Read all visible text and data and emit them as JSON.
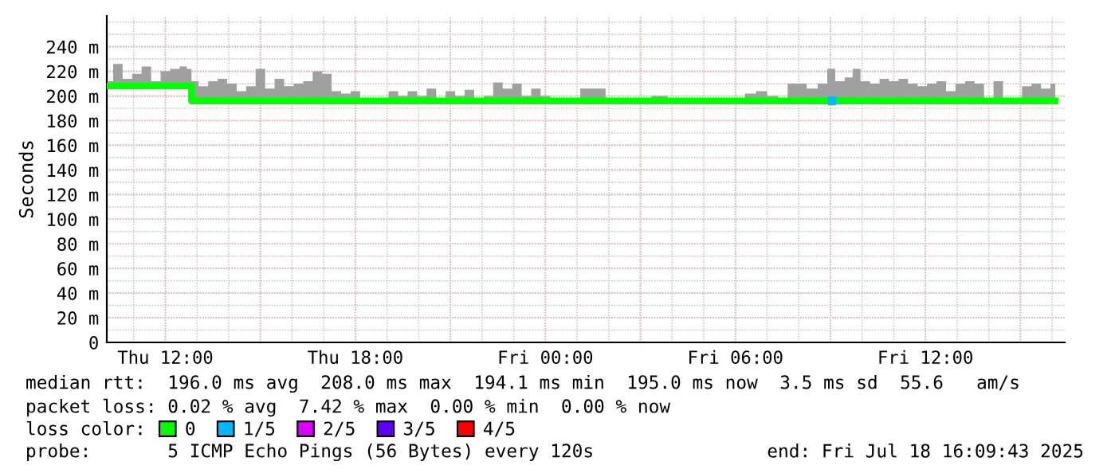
{
  "chart_data": {
    "type": "line",
    "ylabel": "Seconds",
    "xlim": [
      "2025-07-17T10:09",
      "2025-07-18T16:24"
    ],
    "ylim": [
      0,
      265
    ],
    "xticks": [
      {
        "value": "2025-07-17T12:00",
        "label": "Thu 12:00"
      },
      {
        "value": "2025-07-17T15:00",
        "label": null
      },
      {
        "value": "2025-07-17T18:00",
        "label": "Thu 18:00"
      },
      {
        "value": "2025-07-17T21:00",
        "label": null
      },
      {
        "value": "2025-07-18T00:00",
        "label": "Fri 00:00"
      },
      {
        "value": "2025-07-18T03:00",
        "label": null
      },
      {
        "value": "2025-07-18T06:00",
        "label": "Fri 06:00"
      },
      {
        "value": "2025-07-18T09:00",
        "label": null
      },
      {
        "value": "2025-07-18T12:00",
        "label": "Fri 12:00"
      },
      {
        "value": "2025-07-18T15:00",
        "label": null
      }
    ],
    "yticks": [
      0,
      {
        "value": 20,
        "label": "20 m"
      },
      {
        "value": 40,
        "label": "40 m"
      },
      {
        "value": 60,
        "label": "60 m"
      },
      {
        "value": 80,
        "label": "80 m"
      },
      {
        "value": 100,
        "label": "100 m"
      },
      {
        "value": 120,
        "label": "120 m"
      },
      {
        "value": 140,
        "label": "140 m"
      },
      {
        "value": 160,
        "label": "160 m"
      },
      {
        "value": 180,
        "label": "180 m"
      },
      {
        "value": 200,
        "label": "200 m"
      },
      {
        "value": 220,
        "label": "220 m"
      },
      {
        "value": 240,
        "label": "240 m"
      }
    ],
    "grid": true,
    "legend": "bottom",
    "series": [
      {
        "name": "0",
        "color": "#00ff00",
        "x": [
          "2025-07-17T10:12",
          "2025-07-17T10:30",
          "2025-07-17T10:48",
          "2025-07-17T11:06",
          "2025-07-17T11:24",
          "2025-07-17T11:42",
          "2025-07-17T12:00",
          "2025-07-17T12:18",
          "2025-07-17T12:36",
          "2025-07-17T12:45",
          "2025-07-17T12:54",
          "2025-07-17T13:12",
          "2025-07-17T13:30",
          "2025-07-17T13:48",
          "2025-07-17T14:06",
          "2025-07-17T14:24",
          "2025-07-17T14:42",
          "2025-07-17T15:00",
          "2025-07-17T15:18",
          "2025-07-17T15:36",
          "2025-07-17T15:54",
          "2025-07-17T16:12",
          "2025-07-17T16:30",
          "2025-07-17T16:48",
          "2025-07-17T17:06",
          "2025-07-17T17:24",
          "2025-07-17T17:42",
          "2025-07-17T18:00",
          "2025-07-17T18:18",
          "2025-07-17T18:36",
          "2025-07-17T18:54",
          "2025-07-17T19:12",
          "2025-07-17T19:30",
          "2025-07-17T19:48",
          "2025-07-17T20:06",
          "2025-07-17T20:24",
          "2025-07-17T20:42",
          "2025-07-17T21:00",
          "2025-07-17T21:18",
          "2025-07-17T21:36",
          "2025-07-17T21:54",
          "2025-07-17T22:12",
          "2025-07-17T22:30",
          "2025-07-17T22:48",
          "2025-07-17T23:06",
          "2025-07-17T23:24",
          "2025-07-17T23:42",
          "2025-07-18T00:00",
          "2025-07-18T00:18",
          "2025-07-18T00:36",
          "2025-07-18T00:54",
          "2025-07-18T01:18",
          "2025-07-18T01:42",
          "2025-07-18T02:06",
          "2025-07-18T02:36",
          "2025-07-18T03:06",
          "2025-07-18T03:36",
          "2025-07-18T04:06",
          "2025-07-18T04:36",
          "2025-07-18T05:06",
          "2025-07-18T05:36",
          "2025-07-18T06:06",
          "2025-07-18T06:30",
          "2025-07-18T06:48",
          "2025-07-18T07:12",
          "2025-07-18T07:30",
          "2025-07-18T07:48",
          "2025-07-18T08:06",
          "2025-07-18T08:24",
          "2025-07-18T08:48",
          "2025-07-18T09:00",
          "2025-07-18T09:18",
          "2025-07-18T09:36",
          "2025-07-18T09:48",
          "2025-07-18T10:06",
          "2025-07-18T10:24",
          "2025-07-18T10:42",
          "2025-07-18T11:00",
          "2025-07-18T11:18",
          "2025-07-18T11:36",
          "2025-07-18T11:54",
          "2025-07-18T12:12",
          "2025-07-18T12:30",
          "2025-07-18T12:48",
          "2025-07-18T13:06",
          "2025-07-18T13:24",
          "2025-07-18T13:42",
          "2025-07-18T14:00",
          "2025-07-18T14:18",
          "2025-07-18T14:36",
          "2025-07-18T14:54",
          "2025-07-18T15:12",
          "2025-07-18T15:30",
          "2025-07-18T15:48",
          "2025-07-18T16:06"
        ],
        "values": [
          208,
          208,
          208,
          208,
          208,
          208,
          208,
          208,
          208,
          208,
          196,
          196,
          196,
          196,
          196,
          196,
          196,
          196,
          196,
          196,
          196,
          196,
          196,
          196,
          196,
          196,
          196,
          196,
          196,
          196,
          196,
          196,
          196,
          196,
          196,
          196,
          196,
          196,
          196,
          196,
          196,
          196,
          196,
          196,
          196,
          196,
          196,
          196,
          196,
          196,
          196,
          196,
          196,
          196,
          196,
          196,
          196,
          196,
          196,
          196,
          196,
          196,
          196,
          196,
          196,
          196,
          196,
          196,
          196,
          196,
          196,
          196,
          196,
          196,
          196,
          196,
          196,
          196,
          196,
          196,
          196,
          196,
          196,
          196,
          196,
          196,
          196,
          196,
          196,
          196,
          196,
          196,
          196,
          196,
          196
        ],
        "lower": [
          208,
          208,
          208,
          208,
          208,
          208,
          208,
          208,
          208,
          208,
          196,
          196,
          196,
          196,
          196,
          196,
          196,
          196,
          196,
          196,
          196,
          196,
          196,
          196,
          196,
          196,
          196,
          196,
          196,
          196,
          196,
          196,
          196,
          196,
          196,
          196,
          196,
          196,
          196,
          196,
          196,
          196,
          196,
          196,
          196,
          196,
          196,
          196,
          196,
          196,
          196,
          196,
          196,
          196,
          196,
          196,
          196,
          196,
          196,
          196,
          196,
          196,
          196,
          196,
          196,
          196,
          196,
          196,
          196,
          196,
          196,
          196,
          196,
          196,
          196,
          196,
          196,
          196,
          196,
          196,
          196,
          196,
          196,
          196,
          196,
          196,
          196,
          196,
          196,
          196,
          196,
          196,
          196,
          196,
          196
        ],
        "upper": [
          212,
          226,
          214,
          218,
          224,
          212,
          220,
          222,
          224,
          222,
          212,
          208,
          212,
          214,
          210,
          204,
          208,
          222,
          206,
          214,
          208,
          210,
          212,
          220,
          218,
          204,
          202,
          204,
          198,
          197,
          196,
          204,
          200,
          204,
          200,
          206,
          197,
          204,
          200,
          205,
          198,
          200,
          211,
          206,
          210,
          200,
          206,
          200,
          198,
          196,
          197,
          206,
          206,
          197,
          197,
          196,
          200,
          196,
          196,
          196,
          196,
          197,
          202,
          204,
          200,
          197,
          210,
          210,
          206,
          210,
          222,
          212,
          215,
          222,
          212,
          210,
          214,
          212,
          214,
          210,
          208,
          210,
          212,
          204,
          210,
          212,
          210,
          198,
          212,
          197,
          196,
          208,
          210,
          206,
          210
        ]
      },
      {
        "name": "1/5",
        "color": "#00b8ff",
        "type": "scatter",
        "x": [
          "2025-07-18T09:03"
        ],
        "values": [
          196
        ]
      },
      {
        "name": "2/5",
        "color": "#da00ff",
        "type": "scatter"
      },
      {
        "name": "3/5",
        "color": "#5f00ff",
        "type": "scatter"
      },
      {
        "name": "4/5",
        "color": "#ff0000",
        "type": "scatter"
      }
    ],
    "annotations": [
      "median rtt:  196.0 ms avg  208.0 ms max  194.1 ms min  195.0 ms now  3.5 ms sd  55.6   am/s",
      "packet loss: 0.02 % avg  7.42 % max  0.00 % min  0.00 % now",
      "loss color:",
      "probe:       5 ICMP Echo Pings (56 Bytes) every 120s",
      "end: Fri Jul 18 16:09:43 2025"
    ]
  }
}
